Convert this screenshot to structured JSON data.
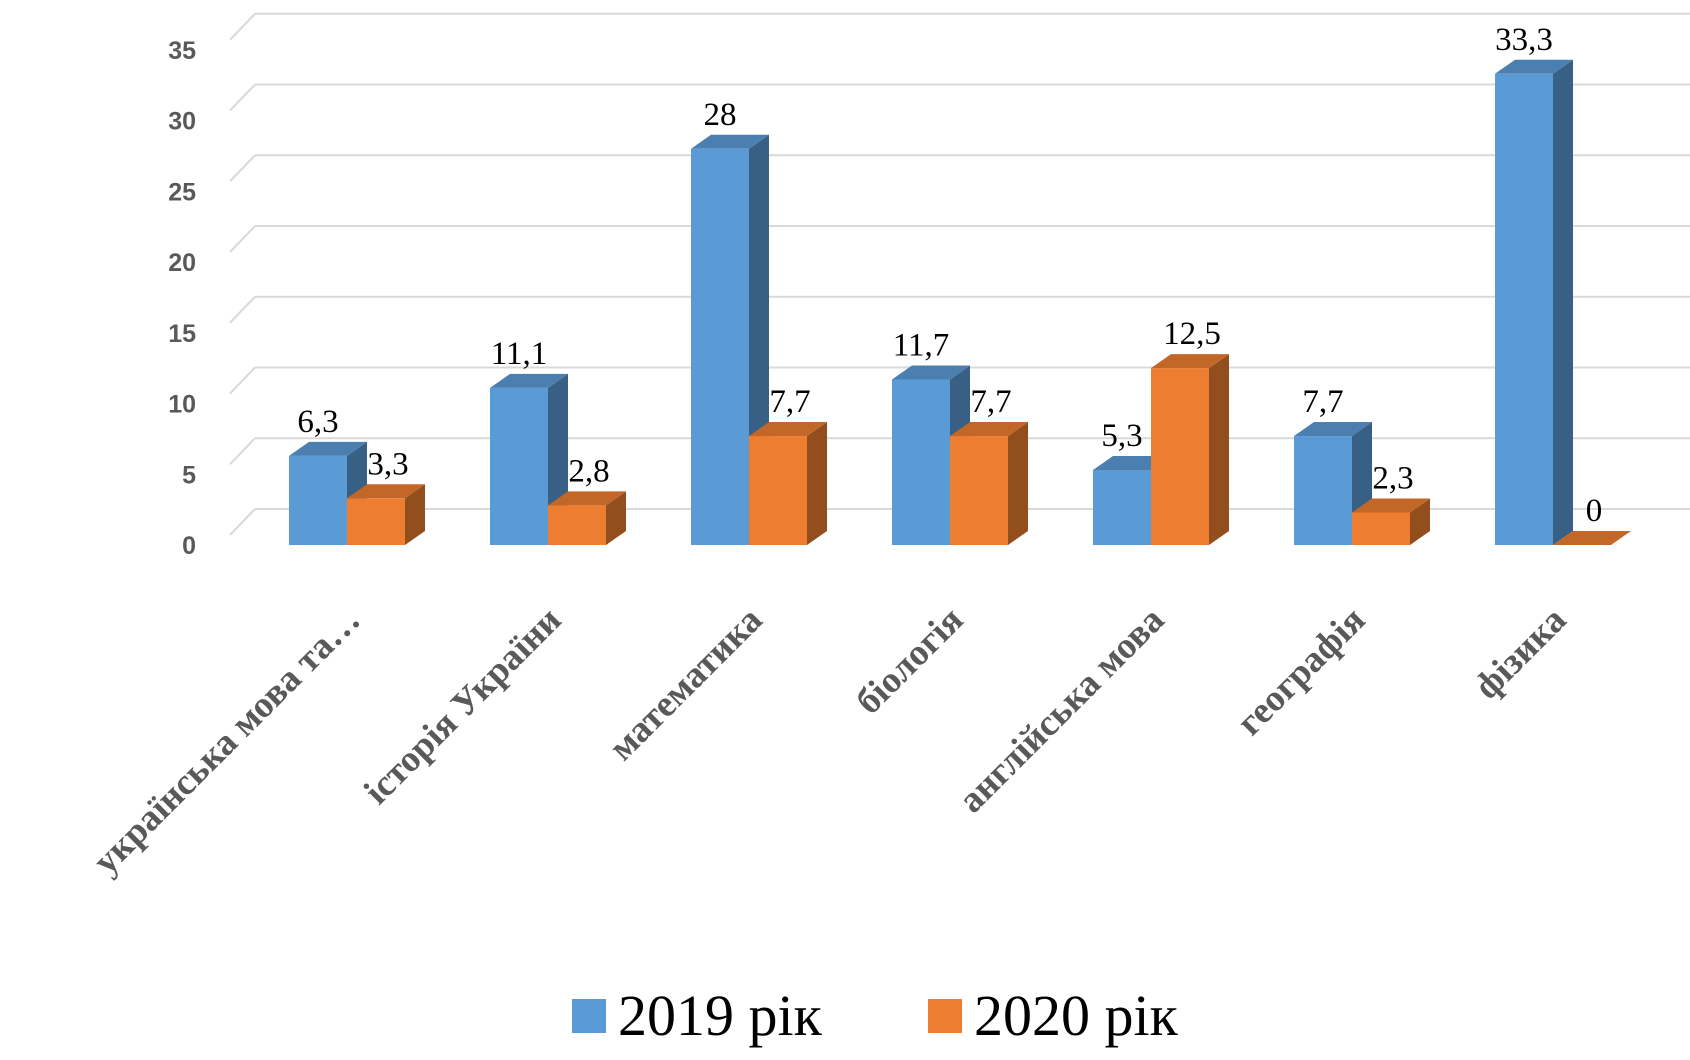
{
  "chart_data": {
    "type": "bar",
    "categories": [
      "українська мова та…",
      "історія України",
      "математика",
      "біологія",
      "англійська мова",
      "географія",
      "фізика"
    ],
    "series": [
      {
        "name": "2019 рік",
        "values": [
          6.3,
          11.1,
          28,
          11.7,
          5.3,
          7.7,
          33.3
        ],
        "labels": [
          "6,3",
          "11,1",
          "28",
          "11,7",
          "5,3",
          "7,7",
          "33,3"
        ],
        "color": "#5B9BD5"
      },
      {
        "name": "2020 рік",
        "values": [
          3.3,
          2.8,
          7.7,
          7.7,
          12.5,
          2.3,
          0
        ],
        "labels": [
          "3,3",
          "2,8",
          "7,7",
          "7,7",
          "12,5",
          "2,3",
          "0"
        ],
        "color": "#ED7D31"
      }
    ],
    "yticks": [
      "0",
      "5",
      "10",
      "15",
      "20",
      "25",
      "30",
      "35"
    ],
    "ylim": [
      0,
      35
    ],
    "grid": true,
    "legend": "bottom",
    "style": "3d-clustered-column"
  }
}
